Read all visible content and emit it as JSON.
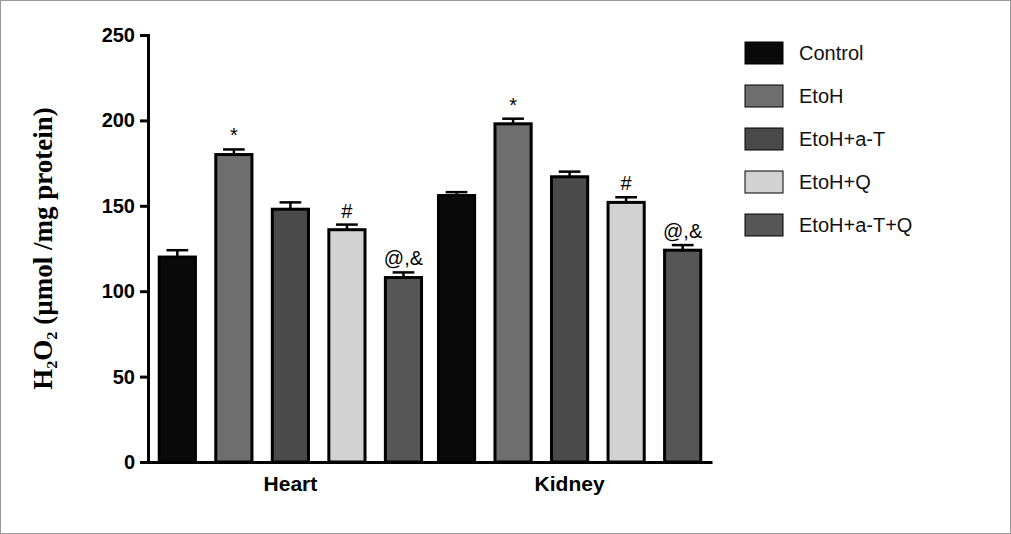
{
  "chart_data": {
    "type": "bar",
    "y_label": "H₂O₂ (µmol /mg protein)",
    "categories": [
      "Heart",
      "Kidney"
    ],
    "series": [
      {
        "name": "Control",
        "color": "#0a0a0a",
        "values": [
          120,
          156
        ],
        "errors": [
          4,
          2
        ]
      },
      {
        "name": "EtoH",
        "color": "#6e6e6e",
        "values": [
          180,
          198
        ],
        "errors": [
          3,
          3
        ],
        "annotations": [
          "*",
          "*"
        ]
      },
      {
        "name": "EtoH+a-T",
        "color": "#4a4a4a",
        "values": [
          148,
          167
        ],
        "errors": [
          4,
          3
        ]
      },
      {
        "name": "EtoH+Q",
        "color": "#d2d2d2",
        "values": [
          136,
          152
        ],
        "errors": [
          3,
          3
        ],
        "annotations": [
          "#",
          "#"
        ]
      },
      {
        "name": "EtoH+a-T+Q",
        "color": "#565656",
        "values": [
          108,
          124
        ],
        "errors": [
          3,
          3
        ],
        "annotations": [
          "@,&",
          "@,&"
        ]
      }
    ],
    "ylim": [
      0,
      250
    ],
    "yticks": [
      0,
      50,
      100,
      150,
      200,
      250
    ],
    "grid": false,
    "legend": "right"
  }
}
